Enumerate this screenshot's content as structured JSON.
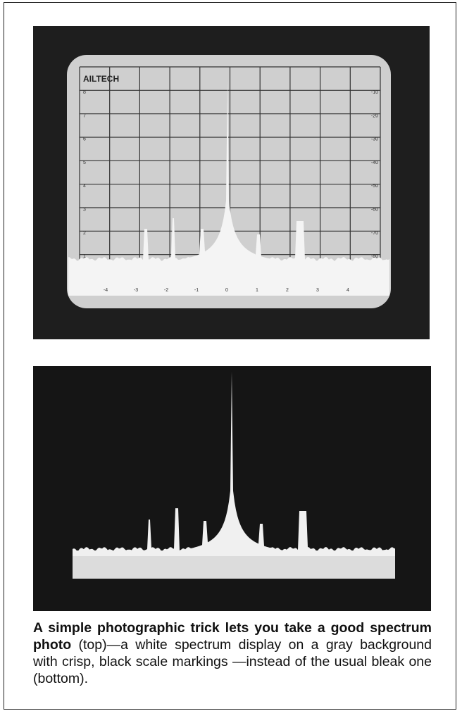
{
  "screen_top": {
    "brand": "AILTECH",
    "left_scale": [
      "8",
      "7",
      "6",
      "5",
      "4",
      "3",
      "2",
      "1"
    ],
    "right_scale": [
      "-10",
      "-20",
      "-30",
      "-40",
      "-50",
      "-60",
      "-70",
      "-80"
    ],
    "bottom_scale": [
      "-4",
      "-3",
      "-2",
      "-1",
      "0",
      "1",
      "2",
      "3",
      "4"
    ]
  },
  "caption": {
    "bold": "A simple photographic trick lets you take a good spectrum photo",
    "text": " (top)—a white spectrum display on a gray background with crisp, black scale markings —instead of the usual bleak one (bottom)."
  }
}
